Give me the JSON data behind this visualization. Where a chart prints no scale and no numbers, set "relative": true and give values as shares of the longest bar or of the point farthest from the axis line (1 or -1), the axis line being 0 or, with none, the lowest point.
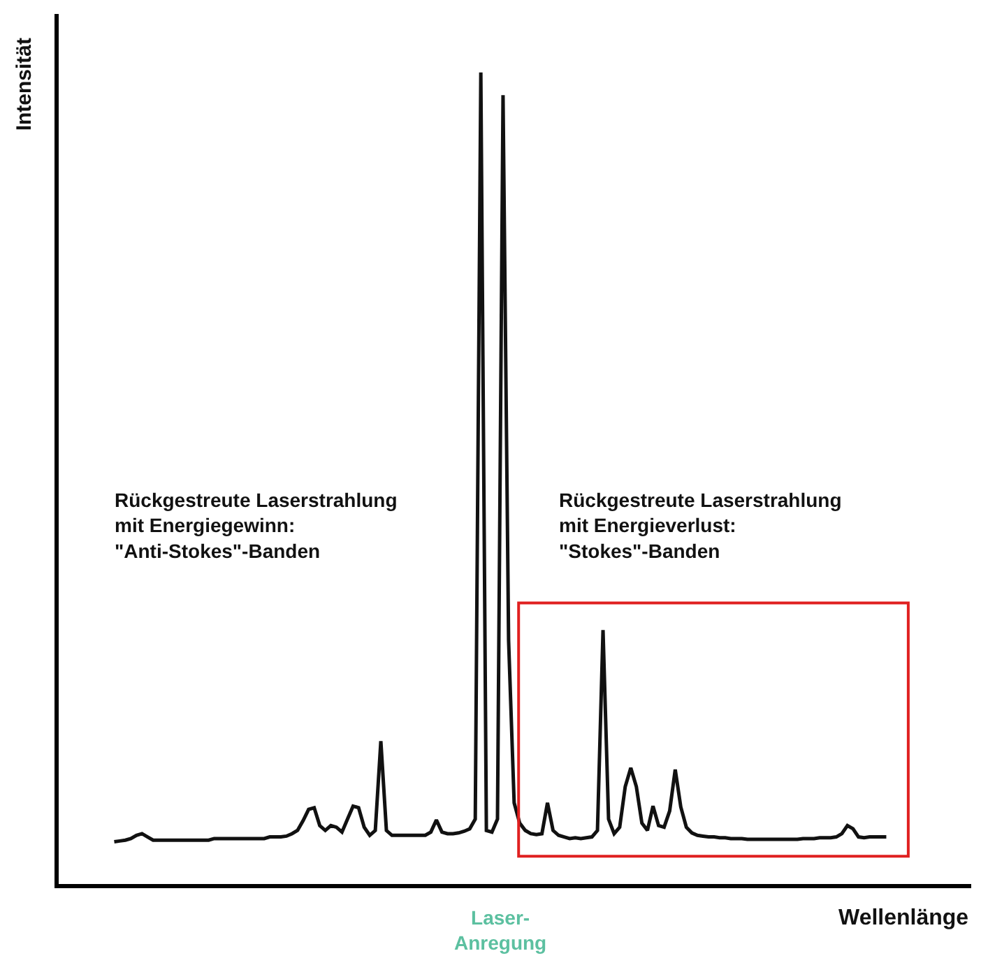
{
  "chart_data": {
    "type": "line",
    "relative": true,
    "xlabel": "Wellenlänge",
    "ylabel": "Intensität",
    "line_style": "solid",
    "categories": [
      null,
      null,
      null,
      null,
      null,
      null,
      null,
      null,
      null,
      null,
      null,
      null,
      null,
      null,
      null,
      null,
      null,
      null,
      null,
      null,
      null,
      null,
      null,
      null,
      null,
      null,
      null,
      null,
      null,
      null,
      null,
      null,
      null,
      null,
      null,
      null,
      null,
      null,
      null,
      null,
      null,
      null,
      null,
      null,
      null,
      null,
      null,
      null,
      null,
      null,
      null,
      null,
      null,
      null,
      null,
      null,
      null,
      null,
      null,
      null,
      null,
      null,
      null,
      null,
      null,
      null,
      null,
      null,
      null,
      null,
      null,
      null,
      null,
      null,
      null,
      null,
      null,
      null,
      null,
      null,
      null,
      null,
      null,
      null,
      null,
      null,
      null,
      null,
      null,
      null,
      null,
      null,
      null,
      null,
      null,
      null,
      null,
      null,
      null,
      null,
      null,
      null,
      null,
      null,
      null,
      null,
      null,
      null,
      null,
      null,
      null,
      null,
      null,
      null,
      null,
      null,
      null,
      null,
      null,
      null,
      null,
      null,
      null,
      null,
      null,
      null,
      null,
      null,
      null,
      null,
      null,
      null,
      null,
      null,
      null,
      null,
      null,
      null,
      null,
      null
    ],
    "series": [
      {
        "color": "#111111",
        "values": [
          0.052,
          0.053,
          0.054,
          0.056,
          0.06,
          0.062,
          0.058,
          0.054,
          0.054,
          0.054,
          0.054,
          0.054,
          0.054,
          0.054,
          0.054,
          0.054,
          0.054,
          0.054,
          0.056,
          0.056,
          0.056,
          0.056,
          0.056,
          0.056,
          0.056,
          0.056,
          0.056,
          0.056,
          0.058,
          0.058,
          0.058,
          0.059,
          0.062,
          0.066,
          0.078,
          0.092,
          0.094,
          0.072,
          0.066,
          0.072,
          0.07,
          0.064,
          0.08,
          0.096,
          0.094,
          0.07,
          0.06,
          0.066,
          0.176,
          0.066,
          0.06,
          0.06,
          0.06,
          0.06,
          0.06,
          0.06,
          0.06,
          0.064,
          0.079,
          0.064,
          0.062,
          0.062,
          0.063,
          0.065,
          0.068,
          0.08,
          1.0,
          0.066,
          0.064,
          0.08,
          0.972,
          0.3,
          0.1,
          0.075,
          0.066,
          0.062,
          0.061,
          0.062,
          0.1,
          0.066,
          0.06,
          0.058,
          0.056,
          0.057,
          0.056,
          0.057,
          0.058,
          0.066,
          0.313,
          0.08,
          0.062,
          0.07,
          0.12,
          0.143,
          0.12,
          0.075,
          0.066,
          0.096,
          0.072,
          0.07,
          0.09,
          0.141,
          0.095,
          0.07,
          0.063,
          0.06,
          0.059,
          0.058,
          0.058,
          0.057,
          0.057,
          0.056,
          0.056,
          0.056,
          0.055,
          0.055,
          0.055,
          0.055,
          0.055,
          0.055,
          0.055,
          0.055,
          0.055,
          0.055,
          0.056,
          0.056,
          0.056,
          0.057,
          0.057,
          0.057,
          0.058,
          0.062,
          0.072,
          0.068,
          0.058,
          0.057,
          0.058,
          0.058,
          0.058,
          0.058
        ]
      }
    ],
    "annotations": [
      "Rückgestreute Laserstrahlung\nmit Energiegewinn:\n\"Anti-Stokes\"-Banden",
      "Rückgestreute Laserstrahlung\nmit Energieverlust:\n\"Stokes\"-Banden",
      "Laser-\nAnregung"
    ]
  }
}
